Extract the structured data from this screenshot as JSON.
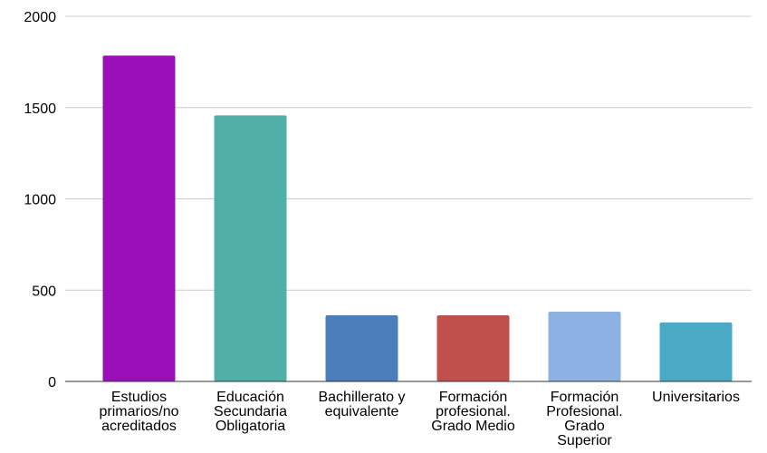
{
  "chart_data": {
    "type": "bar",
    "title": "",
    "xlabel": "",
    "ylabel": "",
    "categories": [
      [
        "Estudios",
        "primarios/no",
        "acreditados"
      ],
      [
        "Educación",
        "Secundaria",
        "Obligatoria"
      ],
      [
        "Bachillerato y",
        "equivalente"
      ],
      [
        "Formación",
        "profesional.",
        "Grado Medio"
      ],
      [
        "Formación",
        "Profesional.",
        "Grado",
        "Superior"
      ],
      [
        "Universitarios"
      ]
    ],
    "values": [
      1785,
      1457,
      362,
      362,
      382,
      323
    ],
    "colors": [
      "#9910b8",
      "#50b0a8",
      "#4b7ebb",
      "#bf504c",
      "#8db1e2",
      "#4aa9c4"
    ],
    "ylim": [
      0,
      2000
    ],
    "yticks": [
      0,
      500,
      1000,
      1500,
      2000
    ],
    "grid": true,
    "legend": "none"
  }
}
